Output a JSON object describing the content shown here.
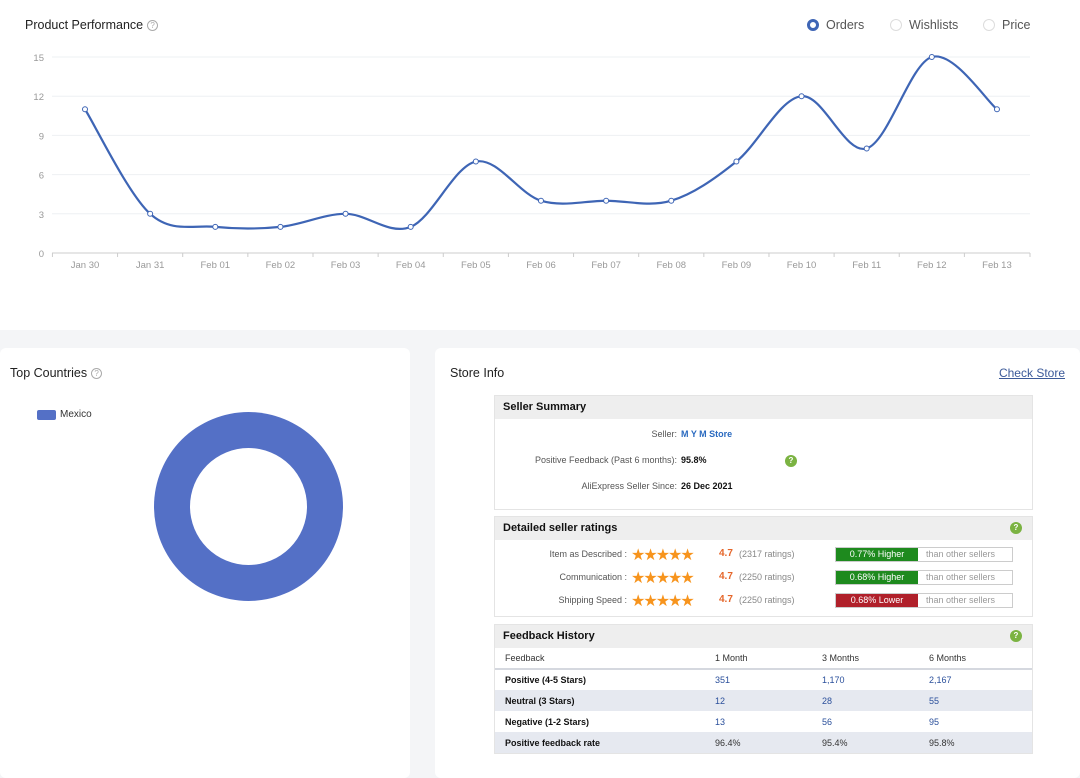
{
  "performance": {
    "title": "Product Performance",
    "help_icon": "question-circle-icon",
    "metrics": [
      {
        "label": "Orders",
        "selected": true
      },
      {
        "label": "Wishlists",
        "selected": false
      },
      {
        "label": "Price",
        "selected": false
      }
    ],
    "accent": "#3e65b5"
  },
  "chart_data": {
    "type": "line",
    "smooth": true,
    "series_metric": "Orders",
    "categories": [
      "Jan 30",
      "Jan 31",
      "Feb 01",
      "Feb 02",
      "Feb 03",
      "Feb 04",
      "Feb 05",
      "Feb 06",
      "Feb 07",
      "Feb 08",
      "Feb 09",
      "Feb 10",
      "Feb 11",
      "Feb 12",
      "Feb 13"
    ],
    "values": [
      11,
      3,
      2,
      2,
      3,
      2,
      7,
      4,
      4,
      4,
      7,
      12,
      8,
      15,
      11
    ],
    "yticks": [
      "0",
      "3",
      "6",
      "9",
      "12",
      "15"
    ],
    "ylim": [
      0,
      15
    ],
    "grid": true,
    "color": "#3e65b5"
  },
  "countries": {
    "title": "Top Countries",
    "legend": [
      "Mexico"
    ],
    "values": [
      {
        "name": "Mexico",
        "share": 1
      }
    ],
    "color": "#5470c6"
  },
  "store": {
    "title": "Store Info",
    "check_link": "Check Store",
    "summary": {
      "title": "Seller Summary",
      "seller_label": "Seller:",
      "seller": "M Y M Store",
      "feedback_label": "Positive Feedback (Past 6 months):",
      "feedback": "95.8%",
      "since_label": "AliExpress Seller Since:",
      "since": "26 Dec 2021"
    },
    "ratings": {
      "title": "Detailed seller ratings",
      "rows": [
        {
          "label": "Item as Described :",
          "stars": "★★★★★",
          "score": "4.7",
          "count": "(2317 ratings)",
          "compare": "0.77% Higher",
          "suffix": "than other sellers",
          "color": "#1e8a1e"
        },
        {
          "label": "Communication :",
          "stars": "★★★★★",
          "score": "4.7",
          "count": "(2250 ratings)",
          "compare": "0.68% Higher",
          "suffix": "than other sellers",
          "color": "#1e8a1e"
        },
        {
          "label": "Shipping Speed :",
          "stars": "★★★★★",
          "score": "4.7",
          "count": "(2250 ratings)",
          "compare": "0.68% Lower",
          "suffix": "than other sellers",
          "color": "#b0202a"
        }
      ]
    },
    "history": {
      "title": "Feedback History",
      "headers": [
        "Feedback",
        "1 Month",
        "3 Months",
        "6 Months"
      ],
      "rows": [
        [
          "Positive (4-5 Stars)",
          "351",
          "1,170",
          "2,167"
        ],
        [
          "Neutral (3 Stars)",
          "12",
          "28",
          "55"
        ],
        [
          "Negative (1-2 Stars)",
          "13",
          "56",
          "95"
        ],
        [
          "Positive feedback rate",
          "96.4%",
          "95.4%",
          "95.8%"
        ]
      ]
    }
  }
}
